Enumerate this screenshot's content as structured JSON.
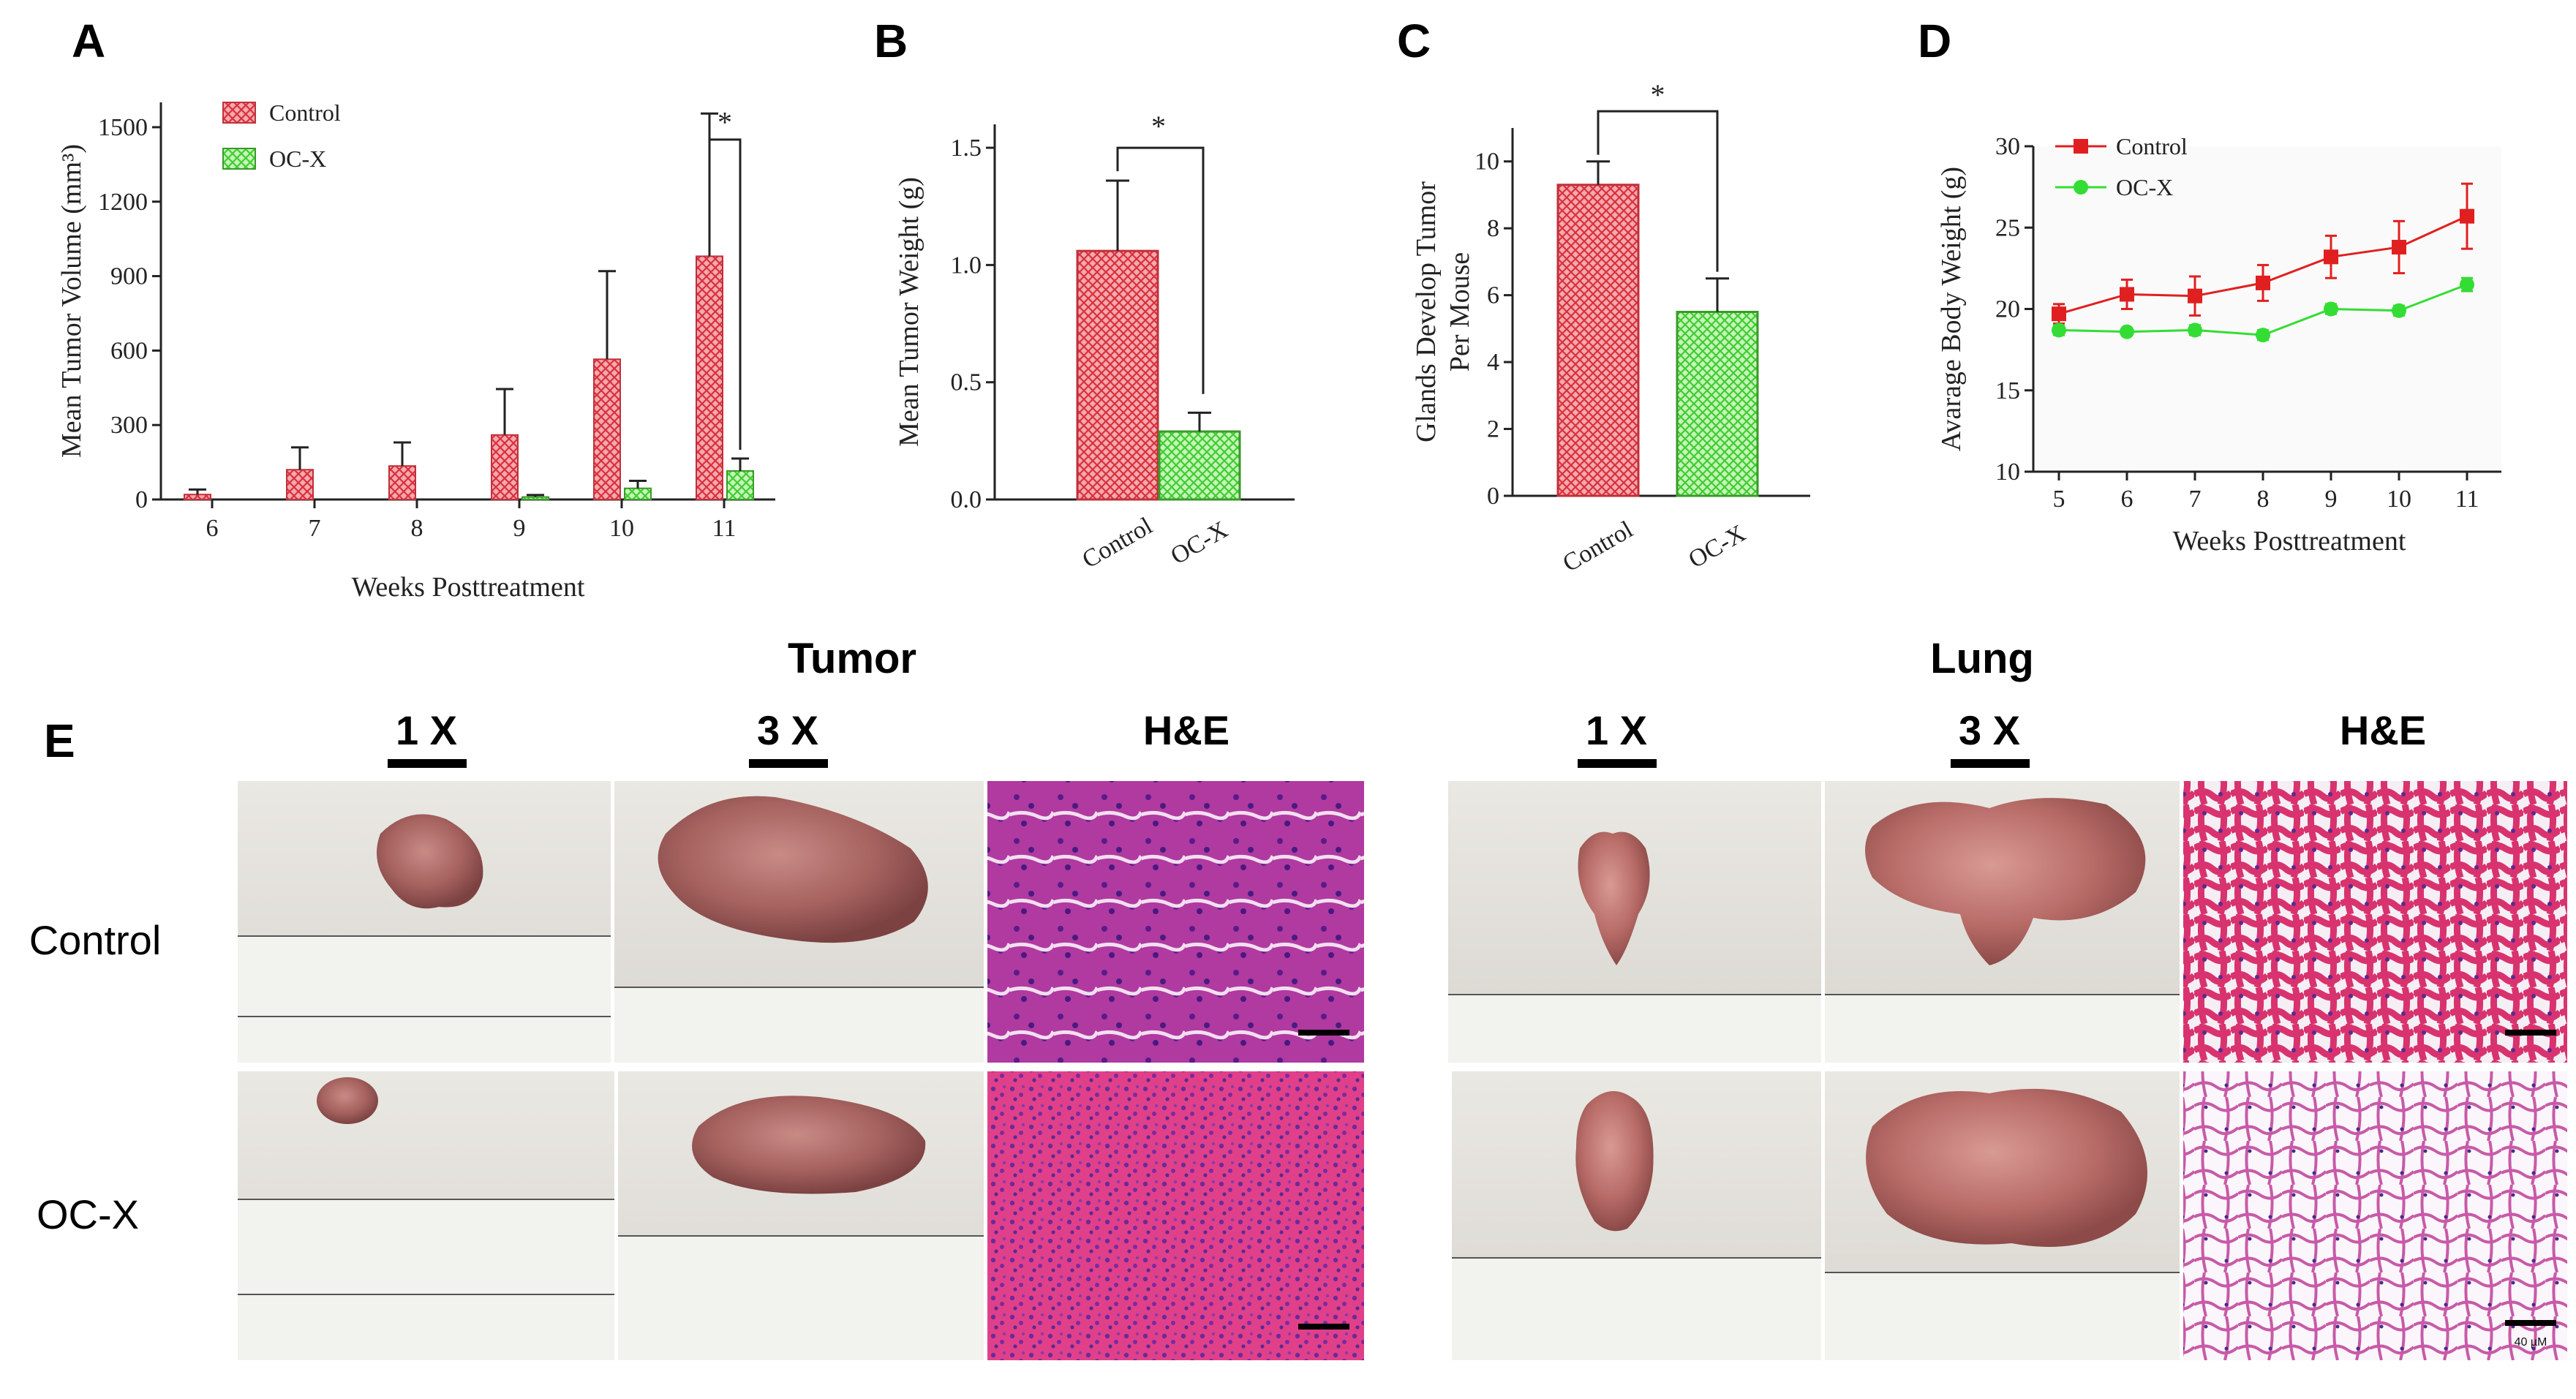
{
  "colors": {
    "control": "#e8717a",
    "control_dark": "#c0303a",
    "ocx": "#8fe07a",
    "ocx_dark": "#3a9a2a",
    "line_control": "#e02020",
    "line_ocx": "#33dd33"
  },
  "panels": {
    "A": "A",
    "B": "B",
    "C": "C",
    "D": "D",
    "E": "E"
  },
  "chart_data": [
    {
      "panel": "A",
      "type": "bar",
      "categories": [
        "6",
        "7",
        "8",
        "9",
        "10",
        "11"
      ],
      "series": [
        {
          "name": "Control",
          "values": [
            20,
            120,
            135,
            260,
            565,
            980
          ],
          "error": [
            20,
            90,
            95,
            185,
            355,
            575
          ]
        },
        {
          "name": "OC-X",
          "values": [
            0,
            0,
            0,
            10,
            45,
            115
          ],
          "error": [
            0,
            0,
            0,
            8,
            30,
            50
          ]
        }
      ],
      "xlabel": "Weeks Posttreatment",
      "ylabel": "Mean Tumor Volume (mm³)",
      "ylim": [
        0,
        1600
      ],
      "yticks": [
        "0",
        "300",
        "600",
        "900",
        "1200",
        "1500"
      ],
      "legend": "top-left",
      "annotation": "*"
    },
    {
      "panel": "B",
      "type": "bar",
      "categories": [
        "Control",
        "OC-X"
      ],
      "values": [
        1.06,
        0.29
      ],
      "error": [
        0.3,
        0.08
      ],
      "ylabel": "Mean Tumor Weight (g)",
      "ylim": [
        0,
        1.6
      ],
      "yticks": [
        "0.0",
        "0.5",
        "1.0",
        "1.5"
      ],
      "annotation": "*"
    },
    {
      "panel": "C",
      "type": "bar",
      "categories": [
        "Control",
        "OC-X"
      ],
      "values": [
        9.3,
        5.5
      ],
      "error": [
        0.7,
        1.0
      ],
      "ylabel": "Glands Develop Tumor Per Mouse",
      "ylim": [
        0,
        11
      ],
      "yticks": [
        "0",
        "2",
        "4",
        "6",
        "8",
        "10"
      ],
      "annotation": "*"
    },
    {
      "panel": "D",
      "type": "line",
      "x": [
        "5",
        "6",
        "7",
        "8",
        "9",
        "10",
        "11"
      ],
      "series": [
        {
          "name": "Control",
          "values": [
            19.7,
            20.9,
            20.8,
            21.6,
            23.2,
            23.8,
            25.7
          ],
          "error": [
            0.6,
            0.9,
            1.2,
            1.1,
            1.3,
            1.6,
            2.0
          ]
        },
        {
          "name": "OC-X",
          "values": [
            18.7,
            18.6,
            18.7,
            18.4,
            20.0,
            19.9,
            21.5
          ],
          "error": [
            0.3,
            0.2,
            0.3,
            0.3,
            0.3,
            0.3,
            0.4
          ]
        }
      ],
      "xlabel": "Weeks Posttreatment",
      "ylabel": "Avarage Body Weight (g)",
      "ylim": [
        10,
        30
      ],
      "yticks": [
        "10",
        "15",
        "20",
        "25",
        "30"
      ],
      "legend": "top-left"
    }
  ],
  "figure_e": {
    "section_tumor": "Tumor",
    "section_lung": "Lung",
    "mag_1x": "1 X",
    "mag_3x": "3 X",
    "mag_he": "H&E",
    "row_control": "Control",
    "row_ocx": "OC-X",
    "scale_label": "40 µM"
  }
}
